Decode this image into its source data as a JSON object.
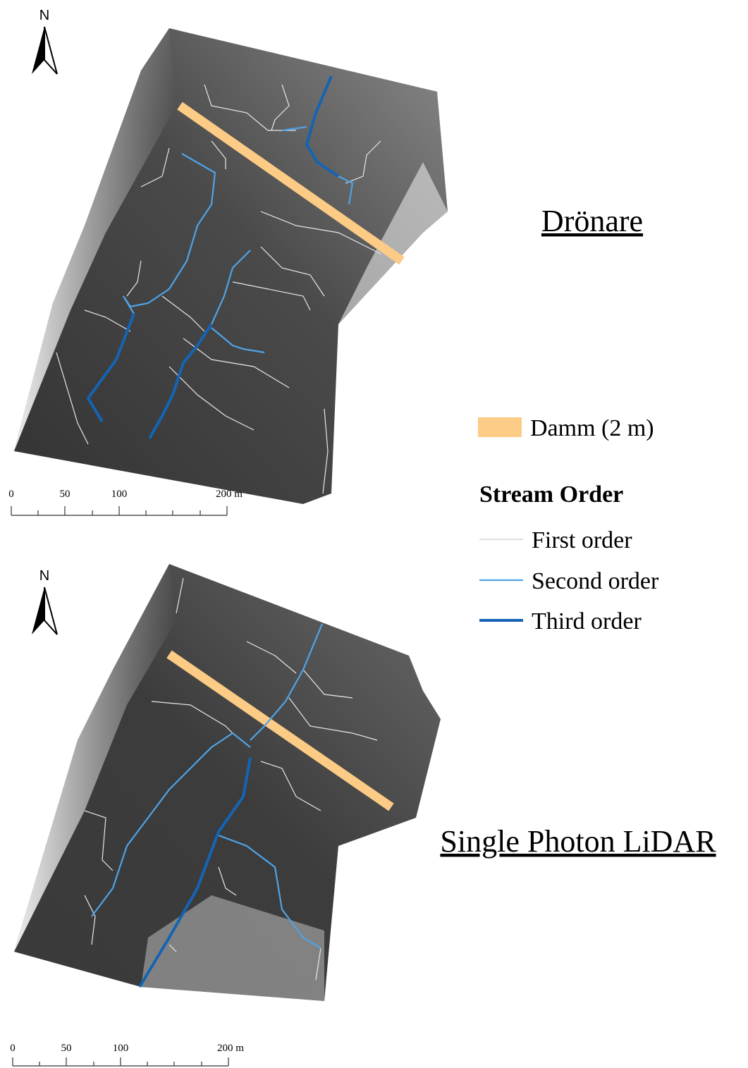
{
  "maps": [
    {
      "title": "Drönare",
      "north": "N",
      "scale_labels": [
        "0",
        "50",
        "100",
        "200 m"
      ]
    },
    {
      "title": "Single Photon LiDAR",
      "north": "N",
      "scale_labels": [
        "0",
        "50",
        "100",
        "200 m"
      ]
    }
  ],
  "legend": {
    "dam": "Damm (2 m)",
    "title": "Stream Order",
    "items": [
      "First order",
      "Second order",
      "Third order"
    ]
  }
}
